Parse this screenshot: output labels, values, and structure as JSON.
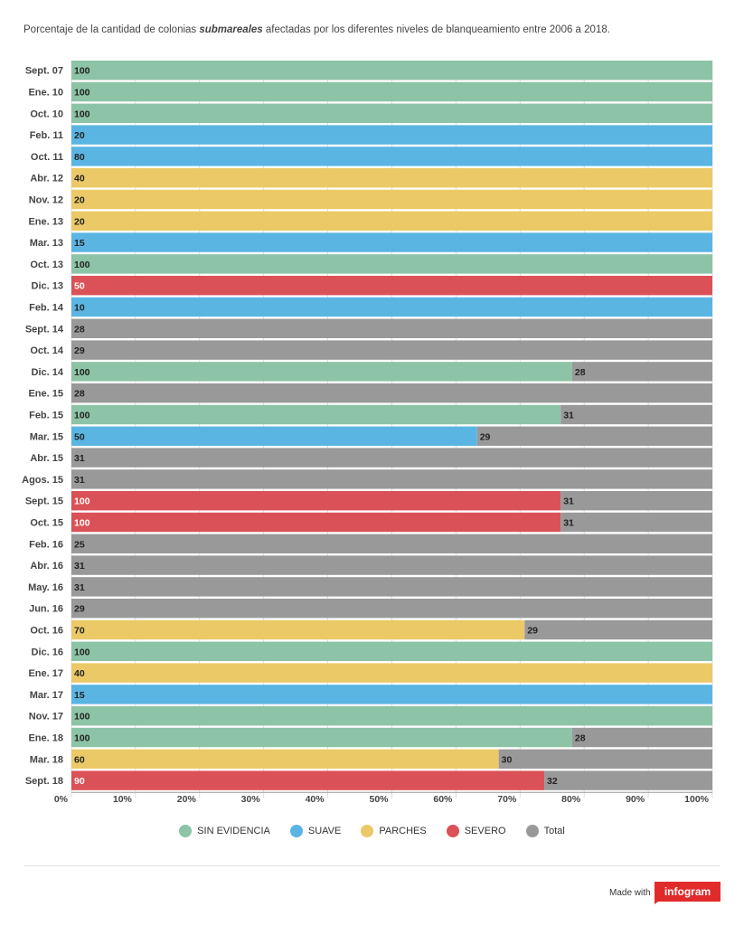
{
  "title": {
    "prefix": "Porcentaje de la cantidad de colonias ",
    "emphasis": "submareales",
    "suffix": " afectadas por los diferentes niveles de blanqueamiento entre 2006 a 2018."
  },
  "colors": {
    "SIN EVIDENCIA": "#8dc3a6",
    "SUAVE": "#5bb5e3",
    "PARCHES": "#ecc967",
    "SEVERO": "#da5257",
    "Total": "#999999"
  },
  "chart_data": {
    "type": "bar",
    "orientation": "horizontal",
    "stacked": true,
    "xlim": [
      0,
      100
    ],
    "xticks": [
      "0%",
      "10%",
      "20%",
      "30%",
      "40%",
      "50%",
      "60%",
      "70%",
      "80%",
      "90%",
      "100%"
    ],
    "legend_position": "bottom",
    "series_names": [
      "SIN EVIDENCIA",
      "SUAVE",
      "PARCHES",
      "SEVERO",
      "Total"
    ],
    "rows": [
      {
        "label": "Sept. 07",
        "segments": [
          {
            "series": "SIN EVIDENCIA",
            "value": 100
          }
        ]
      },
      {
        "label": "Ene. 10",
        "segments": [
          {
            "series": "SIN EVIDENCIA",
            "value": 100
          }
        ]
      },
      {
        "label": "Oct. 10",
        "segments": [
          {
            "series": "SIN EVIDENCIA",
            "value": 100
          }
        ]
      },
      {
        "label": "Feb. 11",
        "segments": [
          {
            "series": "SUAVE",
            "value": 20
          }
        ]
      },
      {
        "label": "Oct. 11",
        "segments": [
          {
            "series": "SUAVE",
            "value": 80
          }
        ]
      },
      {
        "label": "Abr. 12",
        "segments": [
          {
            "series": "PARCHES",
            "value": 40
          }
        ]
      },
      {
        "label": "Nov. 12",
        "segments": [
          {
            "series": "PARCHES",
            "value": 20
          }
        ]
      },
      {
        "label": "Ene. 13",
        "segments": [
          {
            "series": "PARCHES",
            "value": 20
          }
        ]
      },
      {
        "label": "Mar. 13",
        "segments": [
          {
            "series": "SUAVE",
            "value": 15
          }
        ]
      },
      {
        "label": "Oct. 13",
        "segments": [
          {
            "series": "SIN EVIDENCIA",
            "value": 100
          }
        ]
      },
      {
        "label": "Dic. 13",
        "segments": [
          {
            "series": "SEVERO",
            "value": 50
          }
        ]
      },
      {
        "label": "Feb. 14",
        "segments": [
          {
            "series": "SUAVE",
            "value": 10
          }
        ]
      },
      {
        "label": "Sept. 14",
        "segments": [
          {
            "series": "Total",
            "value": 28
          }
        ]
      },
      {
        "label": "Oct. 14",
        "segments": [
          {
            "series": "Total",
            "value": 29
          }
        ]
      },
      {
        "label": "Dic. 14",
        "segments": [
          {
            "series": "SIN EVIDENCIA",
            "value": 100
          },
          {
            "series": "Total",
            "value": 28
          }
        ]
      },
      {
        "label": "Ene. 15",
        "segments": [
          {
            "series": "Total",
            "value": 28
          }
        ]
      },
      {
        "label": "Feb. 15",
        "segments": [
          {
            "series": "SIN EVIDENCIA",
            "value": 100
          },
          {
            "series": "Total",
            "value": 31
          }
        ]
      },
      {
        "label": "Mar. 15",
        "segments": [
          {
            "series": "SUAVE",
            "value": 50
          },
          {
            "series": "Total",
            "value": 29
          }
        ]
      },
      {
        "label": "Abr. 15",
        "segments": [
          {
            "series": "Total",
            "value": 31
          }
        ]
      },
      {
        "label": "Agos. 15",
        "segments": [
          {
            "series": "Total",
            "value": 31
          }
        ]
      },
      {
        "label": "Sept. 15",
        "segments": [
          {
            "series": "SEVERO",
            "value": 100
          },
          {
            "series": "Total",
            "value": 31
          }
        ]
      },
      {
        "label": "Oct. 15",
        "segments": [
          {
            "series": "SEVERO",
            "value": 100
          },
          {
            "series": "Total",
            "value": 31
          }
        ]
      },
      {
        "label": "Feb. 16",
        "segments": [
          {
            "series": "Total",
            "value": 25
          }
        ]
      },
      {
        "label": "Abr. 16",
        "segments": [
          {
            "series": "Total",
            "value": 31
          }
        ]
      },
      {
        "label": "May. 16",
        "segments": [
          {
            "series": "Total",
            "value": 31
          }
        ]
      },
      {
        "label": "Jun. 16",
        "segments": [
          {
            "series": "Total",
            "value": 29
          }
        ]
      },
      {
        "label": "Oct. 16",
        "segments": [
          {
            "series": "PARCHES",
            "value": 70
          },
          {
            "series": "Total",
            "value": 29
          }
        ]
      },
      {
        "label": "Dic. 16",
        "segments": [
          {
            "series": "SIN EVIDENCIA",
            "value": 100
          }
        ]
      },
      {
        "label": "Ene. 17",
        "segments": [
          {
            "series": "PARCHES",
            "value": 40
          }
        ]
      },
      {
        "label": "Mar. 17",
        "segments": [
          {
            "series": "SUAVE",
            "value": 15
          }
        ]
      },
      {
        "label": "Nov. 17",
        "segments": [
          {
            "series": "SIN EVIDENCIA",
            "value": 100
          }
        ]
      },
      {
        "label": "Ene. 18",
        "segments": [
          {
            "series": "SIN EVIDENCIA",
            "value": 100
          },
          {
            "series": "Total",
            "value": 28
          }
        ]
      },
      {
        "label": "Mar. 18",
        "segments": [
          {
            "series": "PARCHES",
            "value": 60
          },
          {
            "series": "Total",
            "value": 30
          }
        ]
      },
      {
        "label": "Sept. 18",
        "segments": [
          {
            "series": "SEVERO",
            "value": 90
          },
          {
            "series": "Total",
            "value": 32
          }
        ]
      }
    ]
  },
  "legend": [
    {
      "label": "SIN EVIDENCIA",
      "color": "#8dc3a6"
    },
    {
      "label": "SUAVE",
      "color": "#5bb5e3"
    },
    {
      "label": "PARCHES",
      "color": "#ecc967"
    },
    {
      "label": "SEVERO",
      "color": "#da5257"
    },
    {
      "label": "Total",
      "color": "#999999"
    }
  ],
  "footer": {
    "made_with": "Made with",
    "brand": "infogram"
  }
}
